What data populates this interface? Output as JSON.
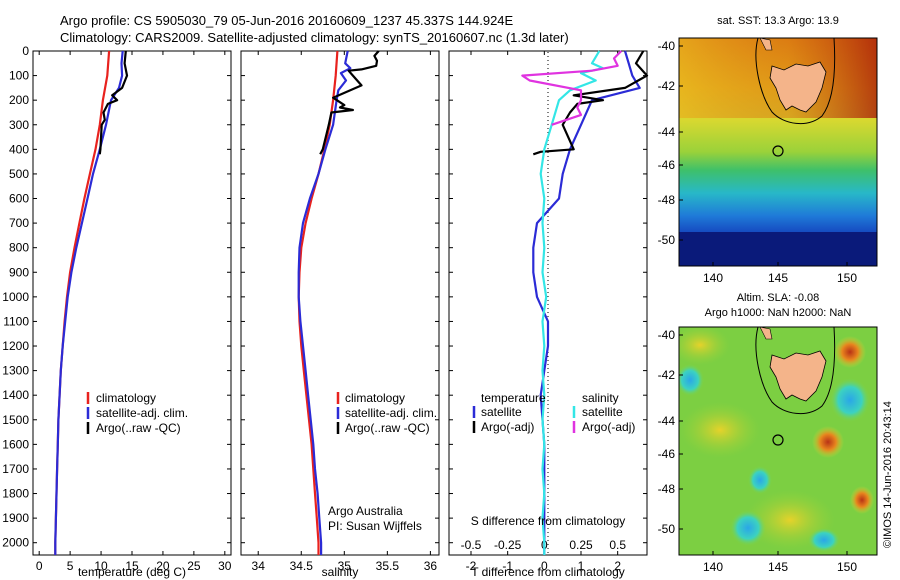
{
  "header": {
    "line1": "Argo profile: CS 5905030_79 05-Jun-2016 20160609_1237 45.337S 144.924E",
    "line2": "Climatology: CARS2009. Satellite-adjusted climatology: synTS_20160607.nc (1.3d later)"
  },
  "credit": "©IMOS 14-Jun-2016 20:43:14",
  "colors": {
    "clim": "#e8221e",
    "sat": "#2b2bd6",
    "argo": "#000000",
    "sat_s": "#33e6e6",
    "argo_s": "#e033e0"
  },
  "chart_data": [
    {
      "id": "temperature",
      "type": "line",
      "xlabel": "temperature (deg C)",
      "ylim": [
        2050,
        0
      ],
      "xlim": [
        -1,
        31
      ],
      "xticks": [
        0,
        5,
        10,
        15,
        20,
        25,
        30
      ],
      "yticks": [
        0,
        100,
        200,
        300,
        400,
        500,
        600,
        700,
        800,
        900,
        1000,
        1100,
        1200,
        1300,
        1400,
        1500,
        1600,
        1700,
        1800,
        1900,
        2000
      ],
      "legend": [
        "climatology",
        "satellite-adj. clim.",
        "Argo(..raw -QC)"
      ],
      "legend_position": "lower-right",
      "series": [
        {
          "name": "climatology",
          "color": "clim",
          "points": [
            [
              11.3,
              0
            ],
            [
              11.0,
              100
            ],
            [
              10.3,
              200
            ],
            [
              9.8,
              300
            ],
            [
              9.1,
              400
            ],
            [
              8.2,
              500
            ],
            [
              7.3,
              600
            ],
            [
              6.5,
              700
            ],
            [
              5.7,
              800
            ],
            [
              5.0,
              900
            ],
            [
              4.5,
              1000
            ],
            [
              4.1,
              1100
            ],
            [
              3.8,
              1200
            ],
            [
              3.5,
              1300
            ],
            [
              3.3,
              1400
            ],
            [
              3.1,
              1500
            ],
            [
              3.0,
              1600
            ],
            [
              2.9,
              1700
            ],
            [
              2.8,
              1800
            ],
            [
              2.7,
              1900
            ],
            [
              2.6,
              2000
            ],
            [
              2.6,
              2050
            ]
          ]
        },
        {
          "name": "satellite-adj. clim.",
          "color": "sat",
          "points": [
            [
              13.5,
              0
            ],
            [
              13.3,
              50
            ],
            [
              13.4,
              100
            ],
            [
              12.9,
              150
            ],
            [
              11.6,
              200
            ],
            [
              10.8,
              300
            ],
            [
              9.8,
              400
            ],
            [
              8.7,
              500
            ],
            [
              7.8,
              600
            ],
            [
              6.9,
              700
            ],
            [
              6.0,
              800
            ],
            [
              5.2,
              900
            ],
            [
              4.6,
              1000
            ],
            [
              4.2,
              1100
            ],
            [
              3.8,
              1200
            ],
            [
              3.5,
              1300
            ],
            [
              3.3,
              1400
            ],
            [
              3.1,
              1500
            ],
            [
              3.0,
              1600
            ],
            [
              2.9,
              1700
            ],
            [
              2.8,
              1800
            ],
            [
              2.7,
              1900
            ],
            [
              2.6,
              2000
            ],
            [
              2.6,
              2050
            ]
          ]
        },
        {
          "name": "Argo(..raw -QC)",
          "color": "argo",
          "points": [
            [
              14.0,
              0
            ],
            [
              13.8,
              50
            ],
            [
              14.2,
              100
            ],
            [
              13.4,
              150
            ],
            [
              11.8,
              180
            ],
            [
              12.6,
              200
            ],
            [
              11.1,
              215
            ],
            [
              10.4,
              250
            ],
            [
              10.6,
              280
            ],
            [
              10.1,
              300
            ],
            [
              9.9,
              400
            ],
            [
              9.8,
              420
            ]
          ]
        }
      ]
    },
    {
      "id": "salinity",
      "type": "line",
      "xlabel": "salinity",
      "ylim": [
        2050,
        0
      ],
      "xlim": [
        33.8,
        36.1
      ],
      "xticks": [
        34,
        34.5,
        35,
        35.5,
        36
      ],
      "legend": [
        "climatology",
        "satellite-adj. clim.",
        "Argo(..raw -QC)"
      ],
      "legend_position": "lower-right",
      "annotation": [
        "Argo Australia",
        "PI: Susan Wijffels"
      ],
      "series": [
        {
          "name": "climatology",
          "color": "clim",
          "points": [
            [
              34.92,
              0
            ],
            [
              34.9,
              100
            ],
            [
              34.87,
              200
            ],
            [
              34.83,
              300
            ],
            [
              34.77,
              400
            ],
            [
              34.7,
              500
            ],
            [
              34.62,
              600
            ],
            [
              34.55,
              700
            ],
            [
              34.5,
              800
            ],
            [
              34.48,
              900
            ],
            [
              34.47,
              1000
            ],
            [
              34.48,
              1100
            ],
            [
              34.5,
              1200
            ],
            [
              34.53,
              1300
            ],
            [
              34.56,
              1400
            ],
            [
              34.59,
              1500
            ],
            [
              34.62,
              1600
            ],
            [
              34.64,
              1700
            ],
            [
              34.66,
              1800
            ],
            [
              34.68,
              1900
            ],
            [
              34.7,
              2000
            ],
            [
              34.7,
              2050
            ]
          ]
        },
        {
          "name": "satellite-adj. clim.",
          "color": "sat",
          "points": [
            [
              35.04,
              0
            ],
            [
              35.01,
              50
            ],
            [
              35.07,
              70
            ],
            [
              34.96,
              90
            ],
            [
              35.02,
              120
            ],
            [
              34.93,
              160
            ],
            [
              34.91,
              200
            ],
            [
              34.87,
              300
            ],
            [
              34.78,
              400
            ],
            [
              34.7,
              500
            ],
            [
              34.6,
              600
            ],
            [
              34.52,
              700
            ],
            [
              34.48,
              800
            ],
            [
              34.47,
              900
            ],
            [
              34.47,
              1000
            ],
            [
              34.49,
              1100
            ],
            [
              34.52,
              1200
            ],
            [
              34.55,
              1300
            ],
            [
              34.58,
              1400
            ],
            [
              34.61,
              1500
            ],
            [
              34.64,
              1600
            ],
            [
              34.66,
              1700
            ],
            [
              34.69,
              1800
            ],
            [
              34.71,
              1900
            ],
            [
              34.73,
              2000
            ],
            [
              34.73,
              2050
            ]
          ]
        },
        {
          "name": "Argo(..raw -QC)",
          "color": "argo",
          "points": [
            [
              35.4,
              0
            ],
            [
              35.35,
              20
            ],
            [
              35.38,
              40
            ],
            [
              35.37,
              60
            ],
            [
              35.2,
              75
            ],
            [
              35.05,
              80
            ],
            [
              35.1,
              100
            ],
            [
              35.2,
              140
            ],
            [
              34.87,
              190
            ],
            [
              35.0,
              220
            ],
            [
              34.95,
              230
            ],
            [
              35.1,
              240
            ],
            [
              34.85,
              250
            ],
            [
              34.82,
              300
            ],
            [
              34.75,
              400
            ],
            [
              34.72,
              420
            ]
          ]
        }
      ]
    },
    {
      "id": "difference",
      "type": "line",
      "xlabel": "T difference from climatology",
      "top_label": "S difference from climatology",
      "ylim": [
        2050,
        0
      ],
      "xlim": [
        -2.6,
        2.8
      ],
      "xticks": [
        -2,
        -1,
        0,
        1,
        2
      ],
      "sticks": [
        -0.5,
        -0.25,
        0,
        0.25,
        0.5
      ],
      "legend_t_title": "temperature",
      "legend_s_title": "salinity",
      "legend": [
        "satellite",
        "Argo(-adj)",
        "satellite",
        "Argo(-adj)"
      ],
      "legend_position": "lower-center",
      "series": [
        {
          "name": "satellite",
          "color": "sat",
          "points": [
            [
              2.2,
              0
            ],
            [
              2.3,
              50
            ],
            [
              2.4,
              100
            ],
            [
              2.6,
              150
            ],
            [
              1.3,
              200
            ],
            [
              1.0,
              300
            ],
            [
              0.7,
              400
            ],
            [
              0.5,
              500
            ],
            [
              0.4,
              600
            ],
            [
              -0.2,
              700
            ],
            [
              -0.3,
              800
            ],
            [
              -0.3,
              900
            ],
            [
              -0.2,
              1000
            ],
            [
              0.1,
              1100
            ],
            [
              0.1,
              1200
            ],
            [
              0.0,
              1300
            ],
            [
              -0.1,
              1400
            ],
            [
              -0.05,
              1500
            ],
            [
              0.0,
              1600
            ],
            [
              0.0,
              1700
            ],
            [
              0.0,
              1800
            ],
            [
              0.0,
              1900
            ],
            [
              0.0,
              2000
            ],
            [
              0.0,
              2050
            ]
          ]
        },
        {
          "name": "Argo(-adj)",
          "color": "argo",
          "points": [
            [
              2.7,
              0
            ],
            [
              2.5,
              50
            ],
            [
              2.8,
              100
            ],
            [
              2.2,
              150
            ],
            [
              0.8,
              180
            ],
            [
              1.6,
              200
            ],
            [
              0.9,
              215
            ],
            [
              0.7,
              250
            ],
            [
              0.5,
              300
            ],
            [
              0.8,
              400
            ],
            [
              -0.1,
              410
            ],
            [
              -0.3,
              420
            ]
          ]
        },
        {
          "name": "satellite",
          "color": "sat_s",
          "points": [
            [
              1.5,
              0
            ],
            [
              1.3,
              50
            ],
            [
              1.6,
              70
            ],
            [
              1.0,
              90
            ],
            [
              1.4,
              120
            ],
            [
              0.7,
              160
            ],
            [
              0.4,
              200
            ],
            [
              0.2,
              300
            ],
            [
              0.0,
              400
            ],
            [
              -0.1,
              500
            ],
            [
              0.0,
              600
            ],
            [
              -0.05,
              700
            ],
            [
              0.0,
              800
            ],
            [
              -0.05,
              900
            ],
            [
              0.05,
              1000
            ],
            [
              -0.05,
              1100
            ],
            [
              0.0,
              1200
            ],
            [
              -0.05,
              1300
            ],
            [
              0.0,
              1400
            ],
            [
              -0.05,
              1500
            ],
            [
              0.0,
              1600
            ],
            [
              -0.05,
              1700
            ],
            [
              0.0,
              1800
            ],
            [
              -0.05,
              1900
            ],
            [
              0.0,
              2000
            ],
            [
              0.0,
              2050
            ]
          ]
        },
        {
          "name": "Argo(-adj)",
          "color": "argo_s",
          "points": [
            [
              2.1,
              0
            ],
            [
              1.9,
              30
            ],
            [
              2.0,
              60
            ],
            [
              1.3,
              80
            ],
            [
              -0.6,
              100
            ],
            [
              -0.4,
              120
            ],
            [
              1.0,
              160
            ],
            [
              1.0,
              200
            ],
            [
              0.9,
              230
            ],
            [
              1.0,
              260
            ],
            [
              0.2,
              300
            ]
          ]
        }
      ]
    }
  ],
  "maps": {
    "sst": {
      "title": "sat. SST: 13.3 Argo: 13.9",
      "lat_ticks": [
        "-40",
        "-42",
        "-44",
        "-46",
        "-48",
        "-50"
      ],
      "lon_ticks": [
        "140",
        "145",
        "150"
      ]
    },
    "sla": {
      "title1": "Altim. SLA: -0.08",
      "title2": "Argo h1000: NaN h2000: NaN",
      "lat_ticks": [
        "-40",
        "-42",
        "-44",
        "-46",
        "-48",
        "-50"
      ],
      "lon_ticks": [
        "140",
        "145",
        "150"
      ]
    }
  }
}
